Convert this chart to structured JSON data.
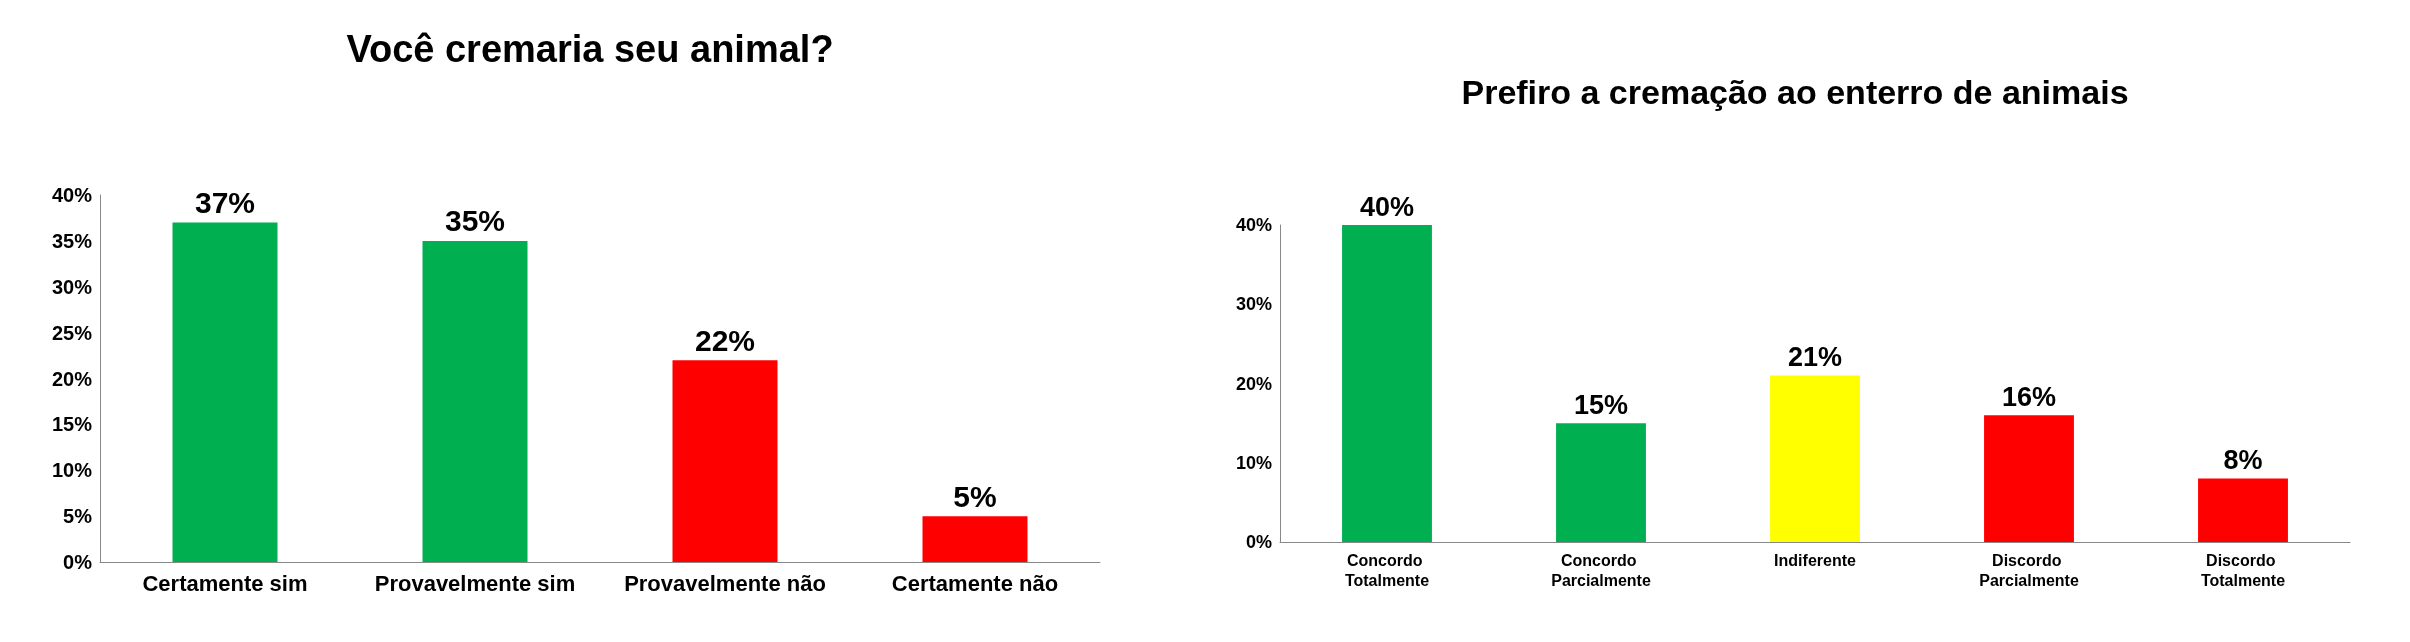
{
  "chart_data": [
    {
      "type": "bar",
      "title": "Você cremaria seu animal?",
      "categories": [
        "Certamente sim",
        "Provavelmente sim",
        "Provavelmente não",
        "Certamente não"
      ],
      "values": [
        37,
        35,
        22,
        5
      ],
      "colors": [
        "#00b050",
        "#00b050",
        "#ff0000",
        "#ff0000"
      ],
      "value_labels": [
        "37%",
        "35%",
        "22%",
        "5%"
      ],
      "ylim": [
        0,
        40
      ],
      "yticks": [
        {
          "value": 0,
          "label": "0%"
        },
        {
          "value": 5,
          "label": "5%"
        },
        {
          "value": 10,
          "label": "10%"
        },
        {
          "value": 15,
          "label": "15%"
        },
        {
          "value": 20,
          "label": "20%"
        },
        {
          "value": 25,
          "label": "25%"
        },
        {
          "value": 30,
          "label": "30%"
        },
        {
          "value": 35,
          "label": "35%"
        },
        {
          "value": 40,
          "label": "40%"
        }
      ],
      "grid": false
    },
    {
      "type": "bar",
      "title": "Prefiro a cremação ao enterro de animais",
      "categories": [
        "Concordo Totalmente",
        "Concordo Parcialmente",
        "Indiferente",
        "Discordo Parcialmente",
        "Discordo Totalmente"
      ],
      "values": [
        40,
        15,
        21,
        16,
        8
      ],
      "colors": [
        "#00b050",
        "#00b050",
        "#ffff00",
        "#ff0000",
        "#ff0000"
      ],
      "value_labels": [
        "40%",
        "15%",
        "21%",
        "16%",
        "8%"
      ],
      "ylim": [
        0,
        40
      ],
      "yticks": [
        {
          "value": 0,
          "label": "0%"
        },
        {
          "value": 10,
          "label": "10%"
        },
        {
          "value": 20,
          "label": "20%"
        },
        {
          "value": 30,
          "label": "30%"
        },
        {
          "value": 40,
          "label": "40%"
        }
      ],
      "grid": false
    }
  ]
}
